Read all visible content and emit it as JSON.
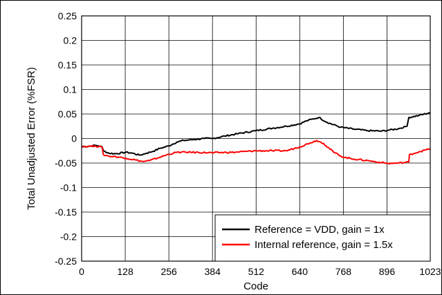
{
  "chart_data": {
    "type": "line",
    "xlabel": "Code",
    "ylabel": "Total Unadjusted Error (%FSR)",
    "xlim": [
      0,
      1023
    ],
    "ylim": [
      -0.25,
      0.25
    ],
    "xticks": [
      0,
      128,
      256,
      384,
      512,
      640,
      768,
      896,
      1023
    ],
    "yticks": [
      0.25,
      0.2,
      0.15,
      0.1,
      0.05,
      0,
      -0.05,
      -0.1,
      -0.15,
      -0.2,
      -0.25
    ],
    "ytick_labels": [
      "0.25",
      "0.2",
      "0.15",
      "0.1",
      "0.05",
      "0",
      "-0.05",
      "-0.1",
      "-0.15",
      "-0.2",
      "-0.25"
    ],
    "grid": true,
    "legend_position": "bottom-right",
    "series": [
      {
        "name": "Reference = VDD, gain = 1x",
        "color": "#000000",
        "x": [
          0,
          20,
          40,
          50,
          60,
          64,
          80,
          100,
          130,
          150,
          170,
          190,
          210,
          230,
          256,
          280,
          300,
          330,
          360,
          384,
          420,
          460,
          512,
          560,
          600,
          640,
          660,
          680,
          696,
          720,
          760,
          800,
          840,
          880,
          900,
          930,
          955,
          960,
          990,
          1023
        ],
        "y": [
          -0.016,
          -0.016,
          -0.014,
          -0.015,
          -0.017,
          -0.025,
          -0.03,
          -0.031,
          -0.028,
          -0.03,
          -0.034,
          -0.03,
          -0.026,
          -0.02,
          -0.015,
          -0.007,
          -0.004,
          -0.002,
          0.0,
          0.0,
          0.005,
          0.01,
          0.016,
          0.021,
          0.025,
          0.03,
          0.036,
          0.04,
          0.043,
          0.033,
          0.023,
          0.019,
          0.016,
          0.015,
          0.017,
          0.02,
          0.025,
          0.043,
          0.047,
          0.053
        ]
      },
      {
        "name": "Internal reference, gain = 1.5x",
        "color": "#ff0000",
        "x": [
          0,
          20,
          40,
          60,
          64,
          80,
          100,
          130,
          160,
          180,
          200,
          230,
          256,
          280,
          320,
          384,
          450,
          512,
          560,
          600,
          640,
          670,
          690,
          710,
          740,
          768,
          800,
          840,
          880,
          900,
          930,
          960,
          962,
          990,
          1023
        ],
        "y": [
          -0.016,
          -0.016,
          -0.015,
          -0.018,
          -0.033,
          -0.036,
          -0.037,
          -0.04,
          -0.044,
          -0.047,
          -0.045,
          -0.038,
          -0.032,
          -0.028,
          -0.028,
          -0.029,
          -0.028,
          -0.025,
          -0.025,
          -0.025,
          -0.017,
          -0.009,
          -0.004,
          -0.01,
          -0.028,
          -0.038,
          -0.042,
          -0.045,
          -0.049,
          -0.051,
          -0.05,
          -0.048,
          -0.033,
          -0.027,
          -0.021
        ]
      }
    ]
  }
}
